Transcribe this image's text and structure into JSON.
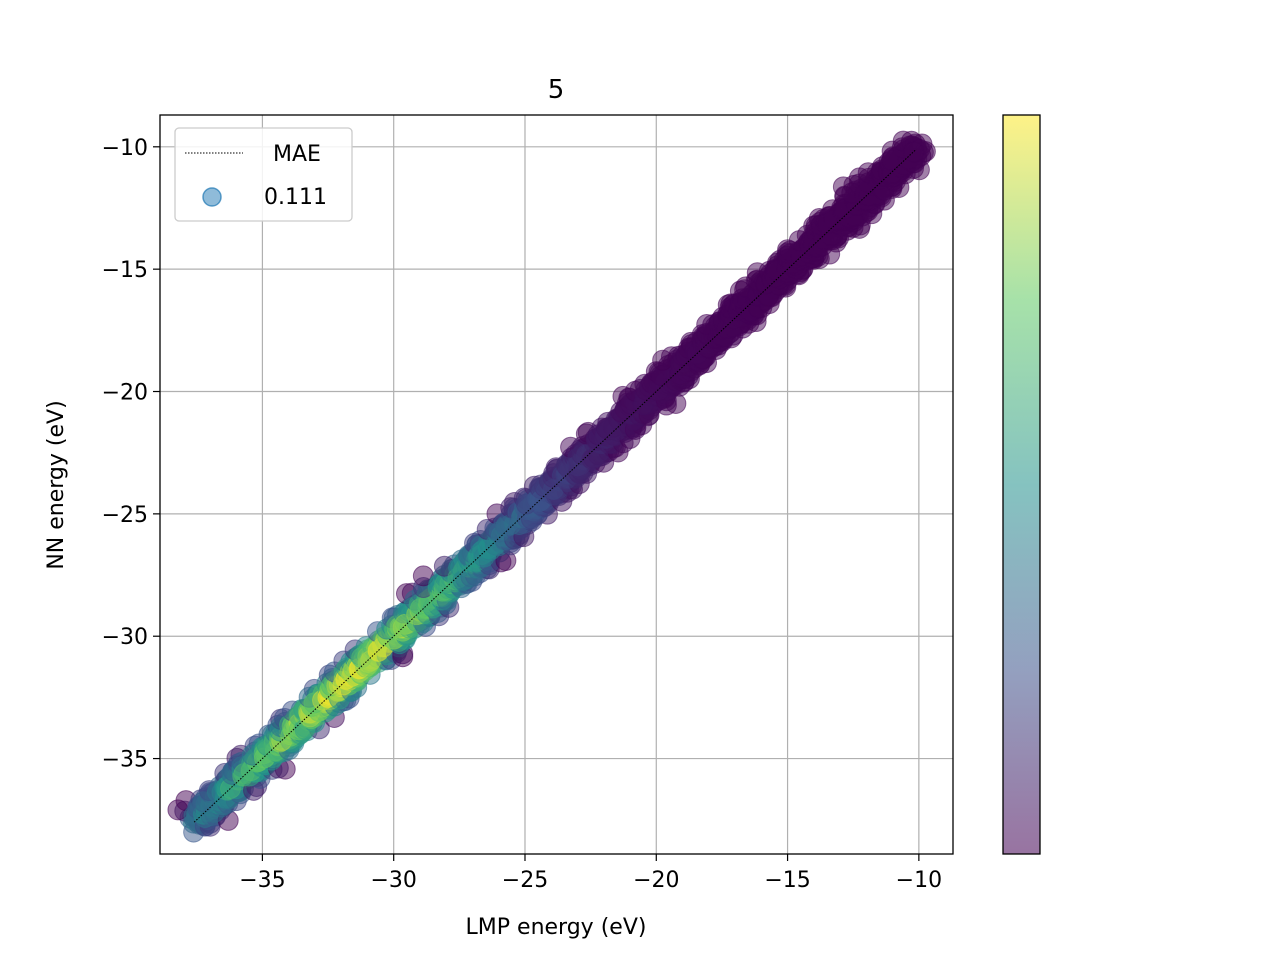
{
  "chart_data": {
    "type": "scatter",
    "title": "5",
    "xlabel": "LMP energy (eV)",
    "ylabel": "NN energy (eV)",
    "xlim": [
      -38.9,
      -8.7
    ],
    "ylim": [
      -38.9,
      -8.7
    ],
    "xticks": [
      -35,
      -30,
      -25,
      -20,
      -15,
      -10
    ],
    "yticks": [
      -35,
      -30,
      -25,
      -20,
      -15,
      -10
    ],
    "xtick_labels": [
      "−35",
      "−30",
      "−25",
      "−20",
      "−15",
      "−10"
    ],
    "ytick_labels": [
      "−35",
      "−30",
      "−25",
      "−20",
      "−15",
      "−10"
    ],
    "grid": true,
    "colormap": "viridis",
    "colorbar": true,
    "point_color_meaning": "point density",
    "data_range": [
      -37.6,
      -10.1
    ],
    "density_peak_at": -31.5,
    "reference_line": {
      "style": "dotted",
      "color": "#000000",
      "from": -37.6,
      "to": -10.1
    },
    "legend": {
      "placement": "upper-left",
      "entries": [
        {
          "label": "MAE",
          "kind": "dotted-line",
          "color": "#000000"
        },
        {
          "label": "0.111",
          "kind": "marker",
          "color": "#1f77b4"
        }
      ]
    }
  }
}
